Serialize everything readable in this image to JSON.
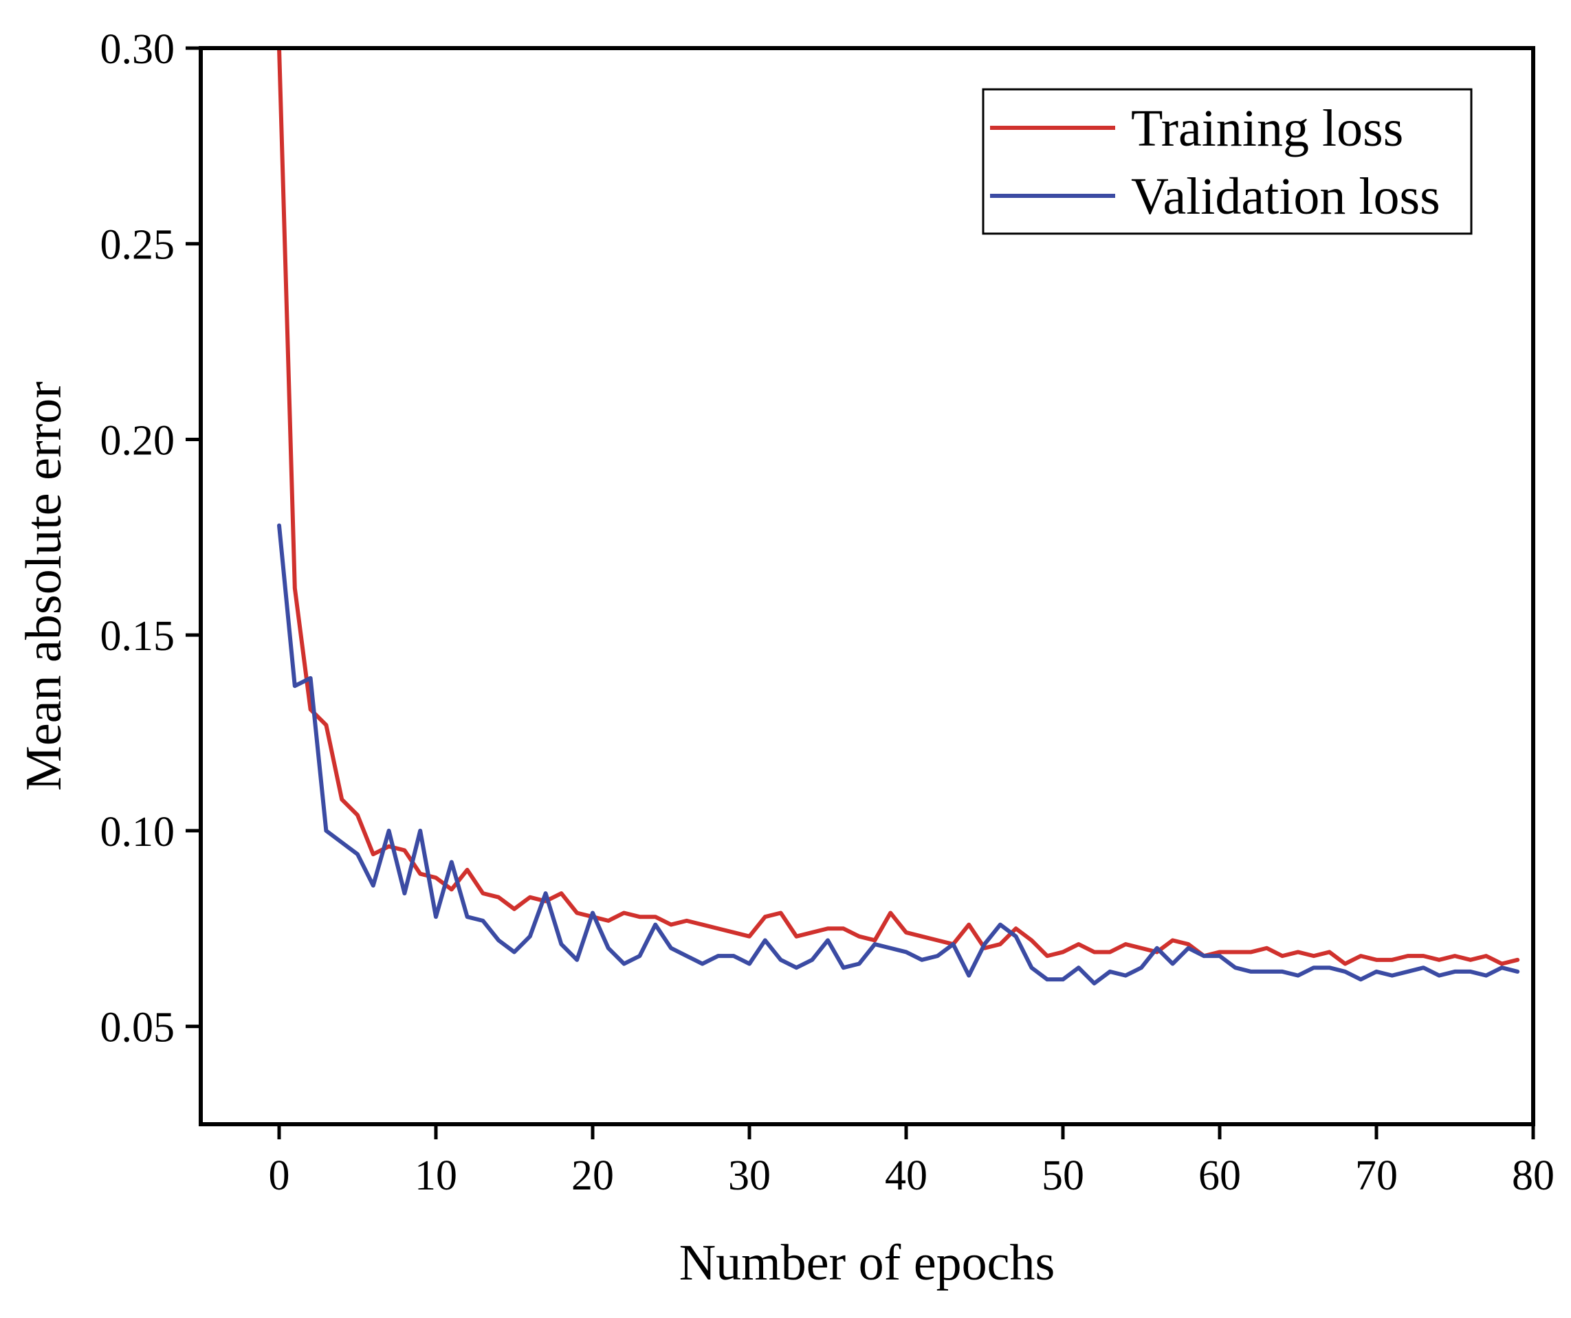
{
  "chart_data": {
    "type": "line",
    "title": "",
    "xlabel": "Number of epochs",
    "ylabel": "Mean absolute error",
    "xlim": [
      -5,
      80
    ],
    "ylim": [
      0.025,
      0.3
    ],
    "xticks": [
      0,
      10,
      20,
      30,
      40,
      50,
      60,
      70,
      80
    ],
    "yticks": [
      0.05,
      0.1,
      0.15,
      0.2,
      0.25,
      0.3
    ],
    "xtick_labels": [
      "0",
      "10",
      "20",
      "30",
      "40",
      "50",
      "60",
      "70",
      "80"
    ],
    "ytick_labels": [
      "0.05",
      "0.10",
      "0.15",
      "0.20",
      "0.25",
      "0.30"
    ],
    "legend_position": "top-right",
    "grid": false,
    "x": [
      0,
      1,
      2,
      3,
      4,
      5,
      6,
      7,
      8,
      9,
      10,
      11,
      12,
      13,
      14,
      15,
      16,
      17,
      18,
      19,
      20,
      21,
      22,
      23,
      24,
      25,
      26,
      27,
      28,
      29,
      30,
      31,
      32,
      33,
      34,
      35,
      36,
      37,
      38,
      39,
      40,
      41,
      42,
      43,
      44,
      45,
      46,
      47,
      48,
      49,
      50,
      51,
      52,
      53,
      54,
      55,
      56,
      57,
      58,
      59,
      60,
      61,
      62,
      63,
      64,
      65,
      66,
      67,
      68,
      69,
      70,
      71,
      72,
      73,
      74,
      75,
      76,
      77,
      78,
      79
    ],
    "series": [
      {
        "name": "Training loss",
        "color": "#d0312d",
        "values": [
          0.3,
          0.162,
          0.131,
          0.127,
          0.108,
          0.104,
          0.094,
          0.096,
          0.095,
          0.089,
          0.088,
          0.085,
          0.09,
          0.084,
          0.083,
          0.08,
          0.083,
          0.082,
          0.084,
          0.079,
          0.078,
          0.077,
          0.079,
          0.078,
          0.078,
          0.076,
          0.077,
          0.076,
          0.075,
          0.074,
          0.073,
          0.078,
          0.079,
          0.073,
          0.074,
          0.075,
          0.075,
          0.073,
          0.072,
          0.079,
          0.074,
          0.073,
          0.072,
          0.071,
          0.076,
          0.07,
          0.071,
          0.075,
          0.072,
          0.068,
          0.069,
          0.071,
          0.069,
          0.069,
          0.071,
          0.07,
          0.069,
          0.072,
          0.071,
          0.068,
          0.069,
          0.069,
          0.069,
          0.07,
          0.068,
          0.069,
          0.068,
          0.069,
          0.066,
          0.068,
          0.067,
          0.067,
          0.068,
          0.068,
          0.067,
          0.068,
          0.067,
          0.068,
          0.066,
          0.067
        ]
      },
      {
        "name": "Validation loss",
        "color": "#3b4ba3",
        "values": [
          0.178,
          0.137,
          0.139,
          0.1,
          0.097,
          0.094,
          0.086,
          0.1,
          0.084,
          0.1,
          0.078,
          0.092,
          0.078,
          0.077,
          0.072,
          0.069,
          0.073,
          0.084,
          0.071,
          0.067,
          0.079,
          0.07,
          0.066,
          0.068,
          0.076,
          0.07,
          0.068,
          0.066,
          0.068,
          0.068,
          0.066,
          0.072,
          0.067,
          0.065,
          0.067,
          0.072,
          0.065,
          0.066,
          0.071,
          0.07,
          0.069,
          0.067,
          0.068,
          0.071,
          0.063,
          0.071,
          0.076,
          0.073,
          0.065,
          0.062,
          0.062,
          0.065,
          0.061,
          0.064,
          0.063,
          0.065,
          0.07,
          0.066,
          0.07,
          0.068,
          0.068,
          0.065,
          0.064,
          0.064,
          0.064,
          0.063,
          0.065,
          0.065,
          0.064,
          0.062,
          0.064,
          0.063,
          0.064,
          0.065,
          0.063,
          0.064,
          0.064,
          0.063,
          0.065,
          0.064
        ]
      }
    ]
  }
}
